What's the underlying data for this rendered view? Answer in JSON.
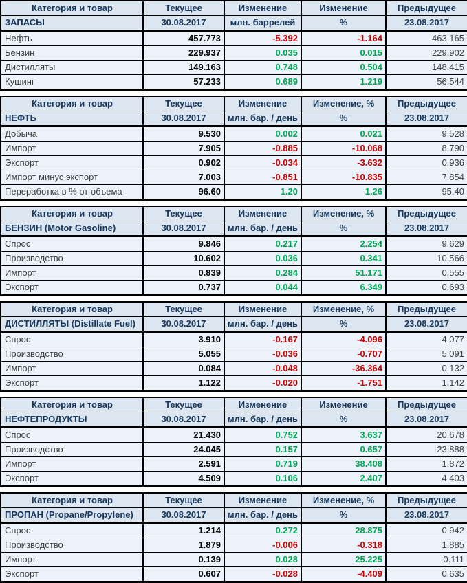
{
  "colors": {
    "header_bg": "#dce6f1",
    "row_bg": "#ebf2fa",
    "header_text": "#17375d",
    "label_text": "#3d3d3d",
    "value_text": "#000000",
    "positive": "#00a651",
    "negative": "#c80000",
    "border": "#000000"
  },
  "chart_data": [
    {
      "type": "table",
      "section": "ЗАПАСЫ",
      "columns": [
        "Категория и товар",
        "Текущее",
        "Изменение",
        "Изменение",
        "Предыдущее"
      ],
      "units_row": [
        "ЗАПАСЫ",
        "30.08.2017",
        "млн. баррелей",
        "%",
        "23.08.2017"
      ],
      "rows": [
        [
          "Нефть",
          "457.773",
          "-5.392",
          "-1.164",
          "463.165"
        ],
        [
          "Бензин",
          "229.937",
          "0.035",
          "0.015",
          "229.902"
        ],
        [
          "Дистилляты",
          "149.163",
          "0.748",
          "0.504",
          "148.415"
        ],
        [
          "Кушинг",
          "57.233",
          "0.689",
          "1.219",
          "56.544"
        ]
      ]
    },
    {
      "type": "table",
      "section": "НЕФТЬ",
      "columns": [
        "Категория и товар",
        "Текущее",
        "Изменение",
        "Изменение, %",
        "Предыдущее"
      ],
      "units_row": [
        "НЕФТЬ",
        "30.08.2017",
        "млн. бар. / день",
        "%",
        "23.08.2017"
      ],
      "rows": [
        [
          "Добыча",
          "9.530",
          "0.002",
          "0.021",
          "9.528"
        ],
        [
          "Импорт",
          "7.905",
          "-0.885",
          "-10.068",
          "8.790"
        ],
        [
          "Экспорт",
          "0.902",
          "-0.034",
          "-3.632",
          "0.936"
        ],
        [
          "Импорт минус экспорт",
          "7.003",
          "-0.851",
          "-10.835",
          "7.854"
        ],
        [
          "Переработка в % от объема",
          "96.60",
          "1.20",
          "1.26",
          "95.40"
        ]
      ]
    },
    {
      "type": "table",
      "section": "БЕНЗИН (Motor Gasoline)",
      "columns": [
        "Категория и товар",
        "Текущее",
        "Изменение",
        "Изменение, %",
        "Предыдущее"
      ],
      "units_row": [
        "БЕНЗИН (Motor Gasoline)",
        "30.08.2017",
        "млн. бар. / день",
        "%",
        "23.08.2017"
      ],
      "rows": [
        [
          "Спрос",
          "9.846",
          "0.217",
          "2.254",
          "9.629"
        ],
        [
          "Производство",
          "10.602",
          "0.036",
          "0.341",
          "10.566"
        ],
        [
          "Импорт",
          "0.839",
          "0.284",
          "51.171",
          "0.555"
        ],
        [
          "Экспорт",
          "0.737",
          "0.044",
          "6.349",
          "0.693"
        ]
      ]
    },
    {
      "type": "table",
      "section": "ДИСТИЛЛЯТЫ (Distillate Fuel)",
      "columns": [
        "Категория и товар",
        "Текущее",
        "Изменение",
        "Изменение, %",
        "Предыдущее"
      ],
      "units_row": [
        "ДИСТИЛЛЯТЫ (Distillate Fuel)",
        "30.08.2017",
        "млн. бар. / день",
        "%",
        "23.08.2017"
      ],
      "rows": [
        [
          "Спрос",
          "3.910",
          "-0.167",
          "-4.096",
          "4.077"
        ],
        [
          "Производство",
          "5.055",
          "-0.036",
          "-0.707",
          "5.091"
        ],
        [
          "Импорт",
          "0.084",
          "-0.048",
          "-36.364",
          "0.132"
        ],
        [
          "Экспорт",
          "1.122",
          "-0.020",
          "-1.751",
          "1.142"
        ]
      ]
    },
    {
      "type": "table",
      "section": "НЕФТЕПРОДУКТЫ",
      "columns": [
        "Категория и товар",
        "Текущее",
        "Изменение",
        "Изменение",
        "Предыдущее"
      ],
      "units_row": [
        "НЕФТЕПРОДУКТЫ",
        "30.08.2017",
        "млн. бар. / день",
        "%",
        "23.08.2017"
      ],
      "rows": [
        [
          "Спрос",
          "21.430",
          "0.752",
          "3.637",
          "20.678"
        ],
        [
          "Производство",
          "24.045",
          "0.157",
          "0.657",
          "23.888"
        ],
        [
          "Импорт",
          "2.591",
          "0.719",
          "38.408",
          "1.872"
        ],
        [
          "Экспорт",
          "4.509",
          "0.106",
          "2.407",
          "4.403"
        ]
      ]
    },
    {
      "type": "table",
      "section": "ПРОПАН (Propane/Propylene)",
      "columns": [
        "Категория и товар",
        "Текущее",
        "Изменение",
        "Изменение, %",
        "Предыдущее"
      ],
      "units_row": [
        "ПРОПАН (Propane/Propylene)",
        "30.08.2017",
        "млн. бар. / день",
        "%",
        "23.08.2017"
      ],
      "rows": [
        [
          "Спрос",
          "1.214",
          "0.272",
          "28.875",
          "0.942"
        ],
        [
          "Производство",
          "1.879",
          "-0.006",
          "-0.318",
          "1.885"
        ],
        [
          "Импорт",
          "0.139",
          "0.028",
          "25.225",
          "0.111"
        ],
        [
          "Экспорт",
          "0.607",
          "-0.028",
          "-4.409",
          "0.635"
        ]
      ]
    }
  ]
}
